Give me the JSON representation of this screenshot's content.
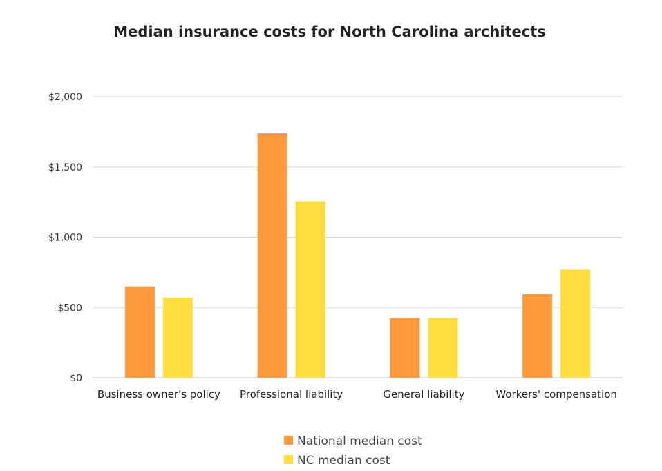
{
  "chart_data": {
    "type": "bar",
    "title": "Median insurance costs for North Carolina architects",
    "xlabel": "",
    "ylabel": "",
    "categories": [
      "Business owner's policy",
      "Professional liability",
      "General liability",
      "Workers' compensation"
    ],
    "series": [
      {
        "name": "National median cost",
        "values": [
          650,
          1740,
          425,
          595
        ],
        "color": "#ff9a3c"
      },
      {
        "name": "NC median cost",
        "values": [
          570,
          1255,
          425,
          770
        ],
        "color": "#ffdd3c"
      }
    ],
    "ylim": [
      0,
      2000
    ],
    "yticks": [
      0,
      500,
      1000,
      1500,
      2000
    ],
    "ytick_labels": [
      "$0",
      "$500",
      "$1,000",
      "$1,500",
      "$2,000"
    ],
    "grid": true,
    "legend_position": "bottom"
  }
}
